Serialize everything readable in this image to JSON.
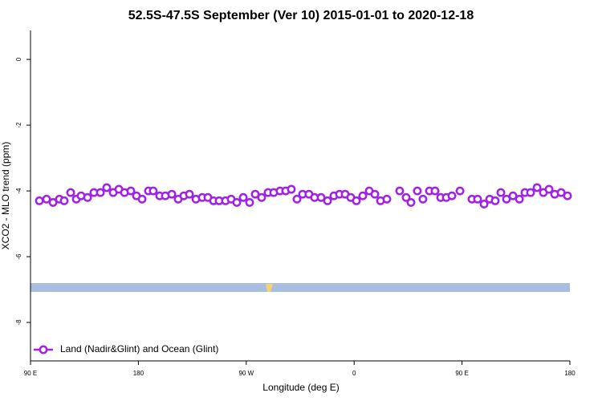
{
  "chart_data": {
    "type": "scatter",
    "title": "52.5S-47.5S September (Ver 10)   2015-01-01 to 2020-12-18",
    "x_label": "Longitude (deg E)",
    "y_label": "XCO2 - MLO trend (ppm)",
    "x": [
      97.4,
      103.4,
      108.8,
      114.1,
      118.1,
      123.5,
      128.2,
      132.2,
      137.6,
      142.9,
      148.3,
      153.6,
      159.0,
      163.7,
      168.4,
      173.7,
      178.4,
      183.1,
      188.4,
      192.4,
      197.8,
      202.5,
      207.9,
      213.2,
      217.9,
      222.6,
      228.0,
      233.3,
      238.0,
      242.7,
      247.4,
      252.7,
      257.4,
      262.1,
      267.5,
      272.8,
      277.5,
      282.8,
      288.2,
      292.9,
      298.2,
      302.9,
      307.6,
      312.3,
      317.0,
      322.3,
      327.0,
      332.4,
      337.8,
      343.1,
      347.8,
      352.5,
      357.2,
      361.9,
      367.2,
      372.6,
      377.3,
      382.0,
      387.3,
      398.0,
      403.4,
      407.4,
      412.7,
      417.4,
      422.8,
      427.5,
      432.2,
      436.9,
      441.6,
      448.3,
      458.3,
      463.0,
      468.4,
      473.1,
      477.7,
      482.4,
      487.1,
      492.5,
      497.9,
      502.5,
      507.2,
      512.6,
      517.9,
      522.6,
      527.3,
      532.7,
      538.0
    ],
    "series": [
      {
        "name": "Land (Nadir&Glint) and Ocean (Glint)",
        "color": "#a020f0",
        "values": [
          -4.3,
          -4.25,
          -4.35,
          -4.25,
          -4.3,
          -4.05,
          -4.25,
          -4.15,
          -4.2,
          -4.05,
          -4.05,
          -3.9,
          -4.05,
          -3.95,
          -4.05,
          -4.0,
          -4.15,
          -4.25,
          -4.0,
          -4.0,
          -4.15,
          -4.15,
          -4.1,
          -4.25,
          -4.15,
          -4.1,
          -4.25,
          -4.2,
          -4.2,
          -4.3,
          -4.3,
          -4.3,
          -4.25,
          -4.35,
          -4.2,
          -4.35,
          -4.1,
          -4.2,
          -4.05,
          -4.05,
          -4.0,
          -4.0,
          -3.95,
          -4.25,
          -4.1,
          -4.1,
          -4.2,
          -4.2,
          -4.3,
          -4.15,
          -4.1,
          -4.1,
          -4.2,
          -4.3,
          -4.15,
          -4.0,
          -4.1,
          -4.3,
          -4.25,
          -4.0,
          -4.2,
          -4.35,
          -4.0,
          -4.25,
          -4.0,
          -4.0,
          -4.2,
          -4.2,
          -4.15,
          -4.0,
          -4.25,
          -4.25,
          -4.4,
          -4.25,
          -4.3,
          -4.05,
          -4.25,
          -4.15,
          -4.25,
          -4.05,
          -4.05,
          -3.9,
          -4.05,
          -3.95,
          -4.1,
          -4.05,
          -4.15
        ]
      }
    ],
    "xlim": [
      90,
      540
    ],
    "xticks": [
      {
        "value": 90,
        "label": "90 E"
      },
      180,
      {
        "value": 270,
        "label": "90 W"
      },
      {
        "value": 360,
        "label": "0"
      },
      {
        "value": 450,
        "label": "90 E"
      },
      {
        "value": 540,
        "label": "180"
      }
    ],
    "ylim": [
      -9.17,
      0.88
    ],
    "yticks": [
      0,
      -2,
      -4,
      -6,
      -8
    ],
    "legend": "bottomleft"
  }
}
